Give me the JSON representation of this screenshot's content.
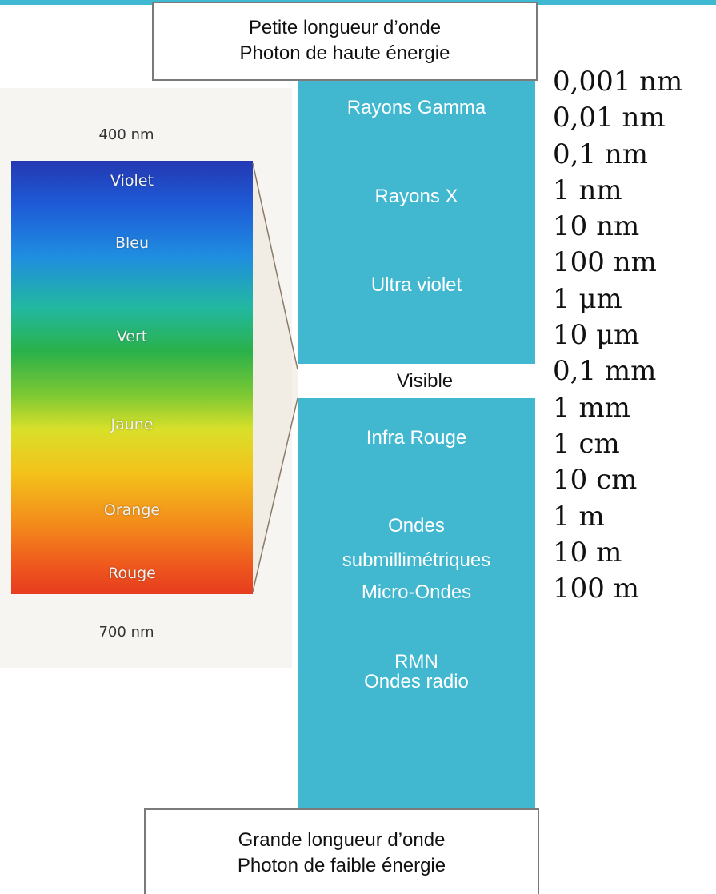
{
  "top_callout": {
    "line1": "Petite longueur d’onde",
    "line2": "Photon de haute énergie"
  },
  "bottom_callout": {
    "line1": "Grande longueur d’onde",
    "line2": "Photon de faible énergie"
  },
  "visible_spectrum": {
    "top_wavelength": "400 nm",
    "bottom_wavelength": "700 nm",
    "colors": [
      "Violet",
      "Bleu",
      "Vert",
      "Jaune",
      "Orange",
      "Rouge"
    ]
  },
  "em_regions": {
    "gamma": "Rayons Gamma",
    "xray": "Rayons X",
    "uv": "Ultra violet",
    "visible": "Visible",
    "ir": "Infra Rouge",
    "submm_line1": "Ondes",
    "submm_line2": "submillimétriques",
    "microwave": "Micro-Ondes",
    "rmn": "RMN",
    "radio": "Ondes radio"
  },
  "wavelength_scale": [
    "0,001 nm",
    "0,01 nm",
    "0,1 nm",
    "1 nm",
    "10 nm",
    "100 nm",
    "1 μm",
    "10 μm",
    "0,1 mm",
    "1 mm",
    "1 cm",
    "10 cm",
    "1 m",
    "10 m",
    "100 m"
  ],
  "colors": {
    "accent_blue": "#41b8d0",
    "callout_border": "#7b7b7b"
  }
}
